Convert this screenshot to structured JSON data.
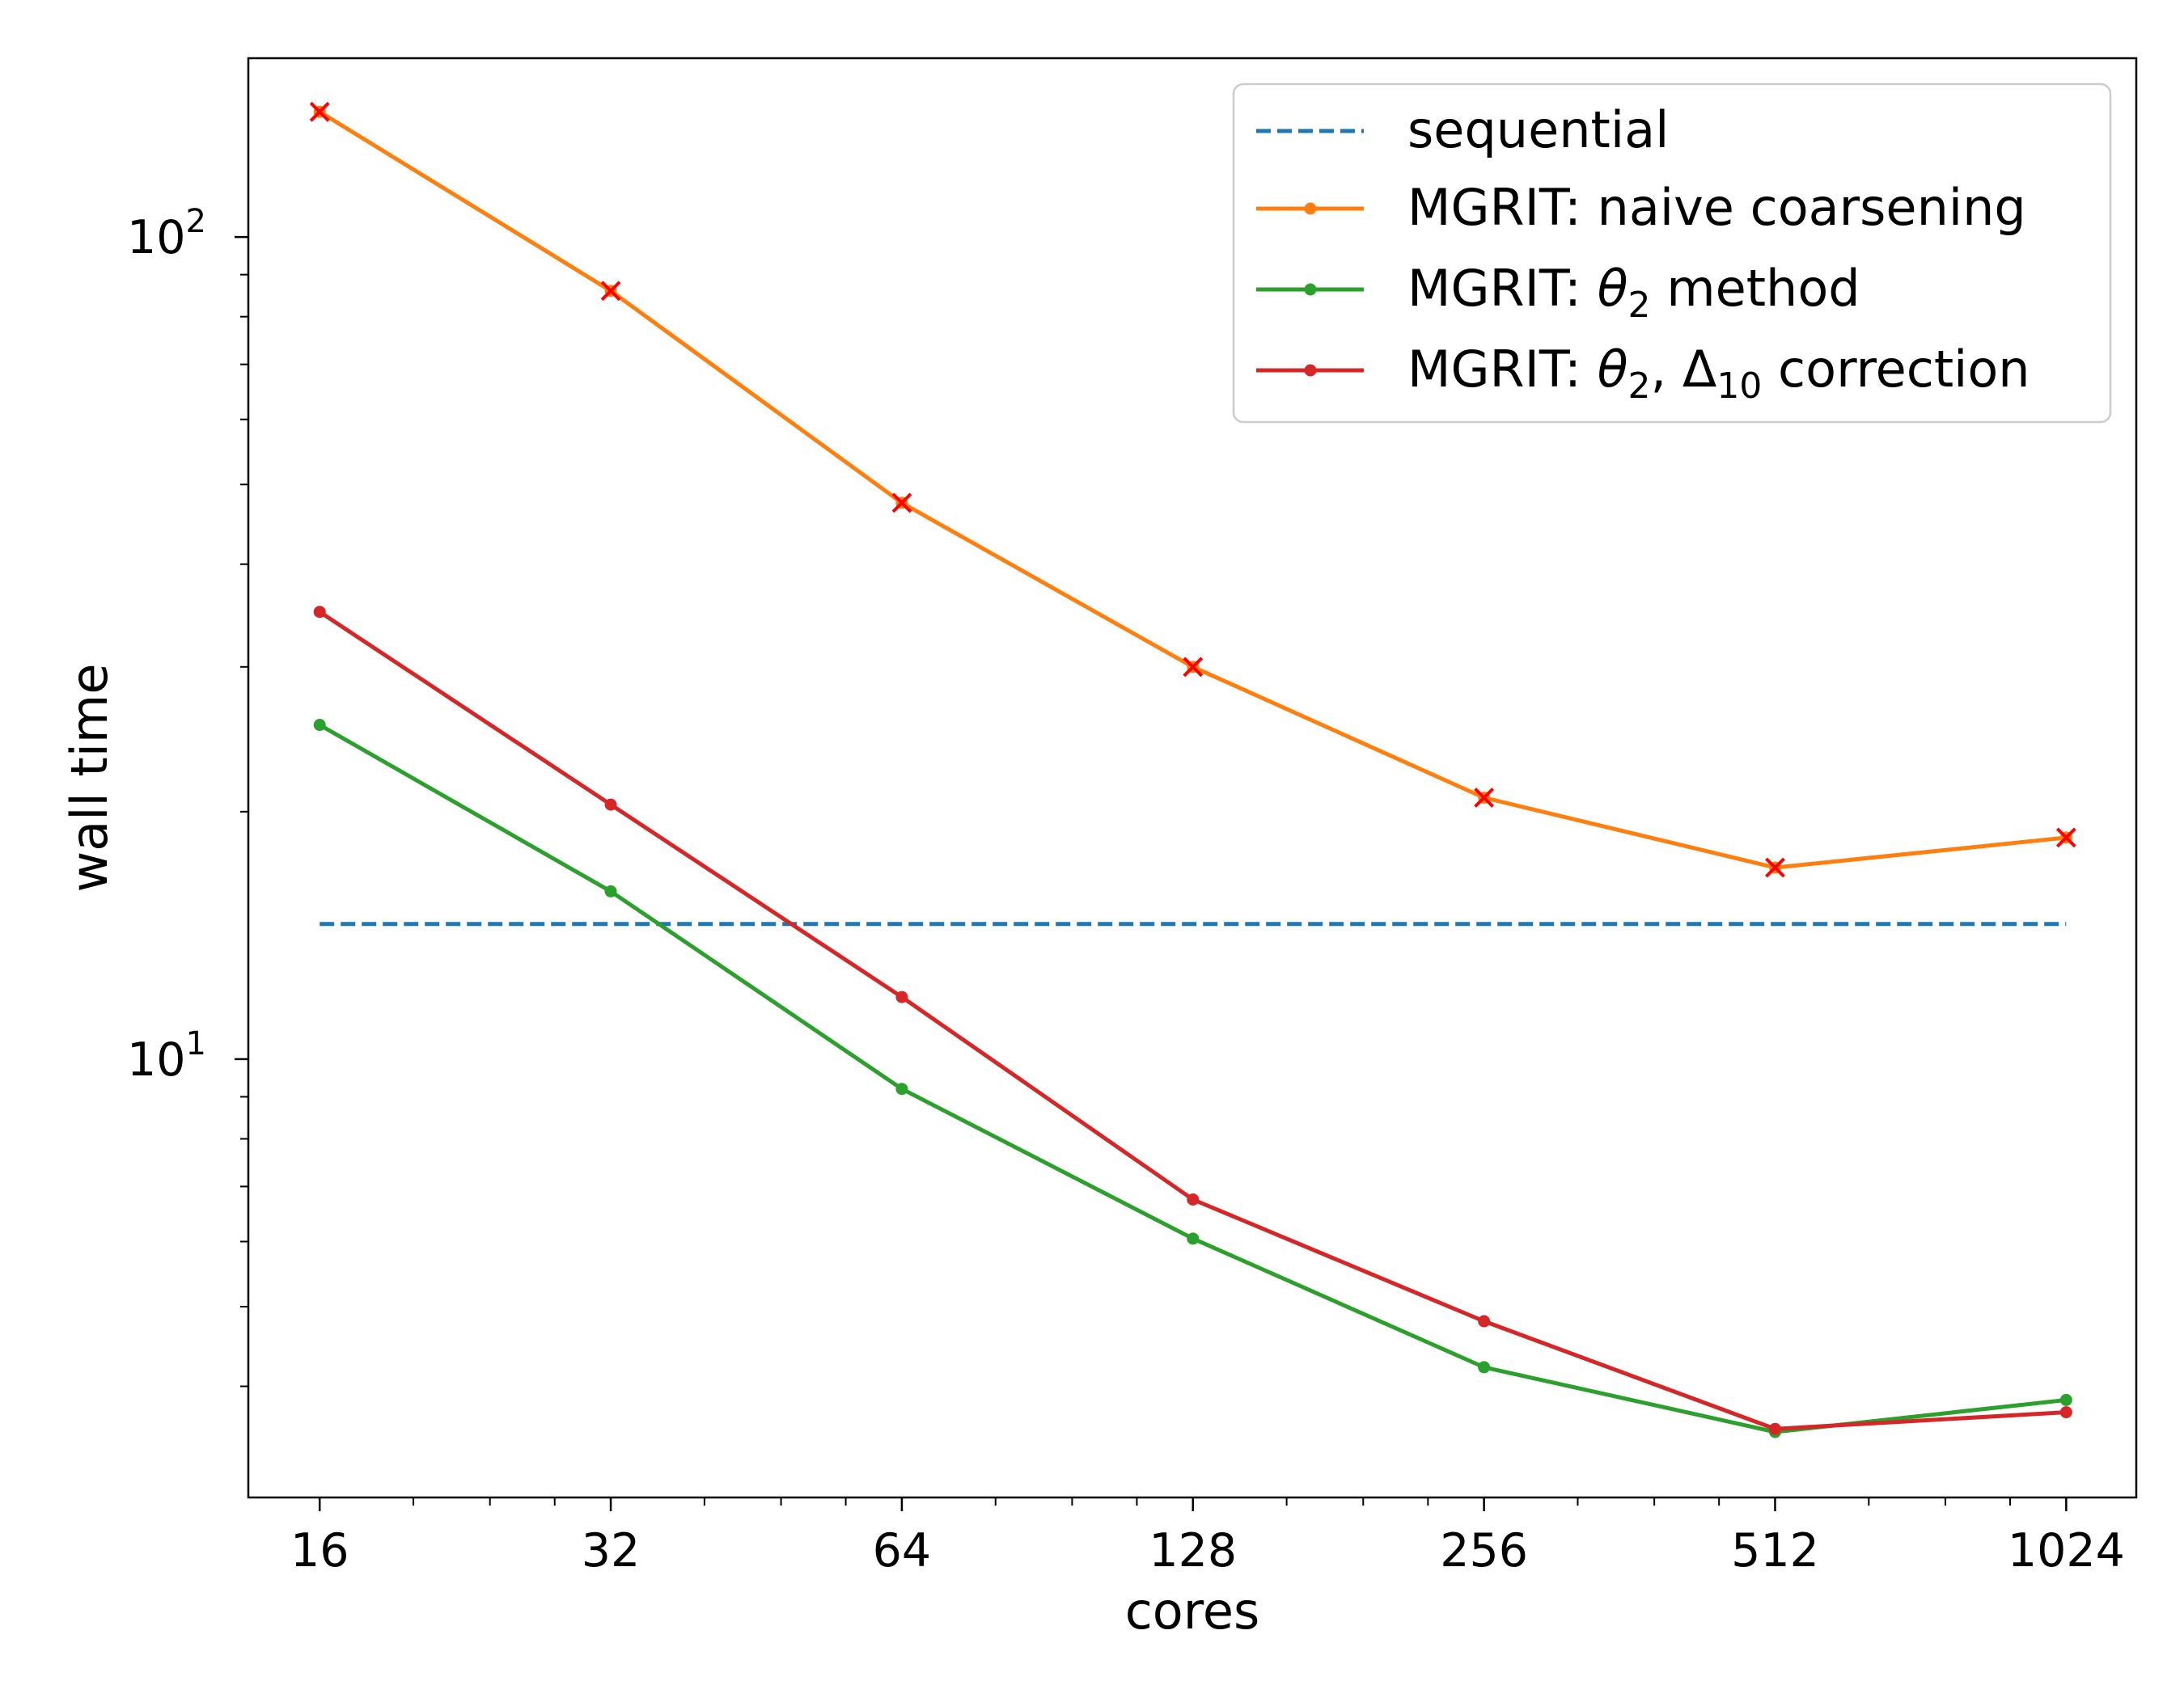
{
  "chart_data": {
    "type": "line",
    "xlabel": "cores",
    "ylabel": "wall time",
    "xscale": "log2",
    "yscale": "log10",
    "xlim": [
      13.5,
      1210
    ],
    "ylim": [
      2.93,
      165
    ],
    "x": [
      16,
      32,
      64,
      128,
      256,
      512,
      1024
    ],
    "xtick_labels": [
      "16",
      "32",
      "64",
      "128",
      "256",
      "512",
      "1024"
    ],
    "ytick_major": [
      {
        "value": 10,
        "base": "10",
        "exp": "1"
      },
      {
        "value": 100,
        "base": "10",
        "exp": "2"
      }
    ],
    "ytick_minor": [
      4,
      5,
      6,
      7,
      8,
      9,
      20,
      30,
      40,
      50,
      60,
      70,
      80,
      90
    ],
    "grid": false,
    "legend_position": "top-right",
    "series": [
      {
        "name": "sequential",
        "color": "#1f77b4",
        "style": "dashed",
        "marker": "none",
        "values": [
          14.6,
          14.6,
          14.6,
          14.6,
          14.6,
          14.6,
          14.6
        ]
      },
      {
        "name": "MGRIT: naive coarsening",
        "color": "#ff7f0e",
        "style": "solid",
        "marker": "dot",
        "overlay_marker": "x",
        "overlay_color": "#ff0000",
        "values": [
          142,
          86,
          47.5,
          30,
          20.8,
          17.1,
          18.6
        ]
      },
      {
        "name": "MGRIT: θ2 method",
        "color": "#2ca02c",
        "style": "solid",
        "marker": "dot",
        "values": [
          25.5,
          16,
          9.2,
          6.05,
          4.22,
          3.52,
          3.85
        ]
      },
      {
        "name": "MGRIT: θ2, Δ10 correction",
        "color": "#d62728",
        "style": "solid",
        "marker": "dot",
        "values": [
          35,
          20.4,
          11.9,
          6.75,
          4.8,
          3.55,
          3.72
        ]
      }
    ]
  },
  "legend": {
    "items": [
      {
        "label": "sequential"
      },
      {
        "label": "MGRIT: naive coarsening"
      },
      {
        "prefix": "MGRIT: ",
        "sym1": "θ",
        "sub1": "2",
        "rest": " method"
      },
      {
        "prefix": "MGRIT: ",
        "sym1": "θ",
        "sub1": "2",
        "mid": ", Δ",
        "sub2": "10",
        "rest": " correction"
      }
    ]
  }
}
